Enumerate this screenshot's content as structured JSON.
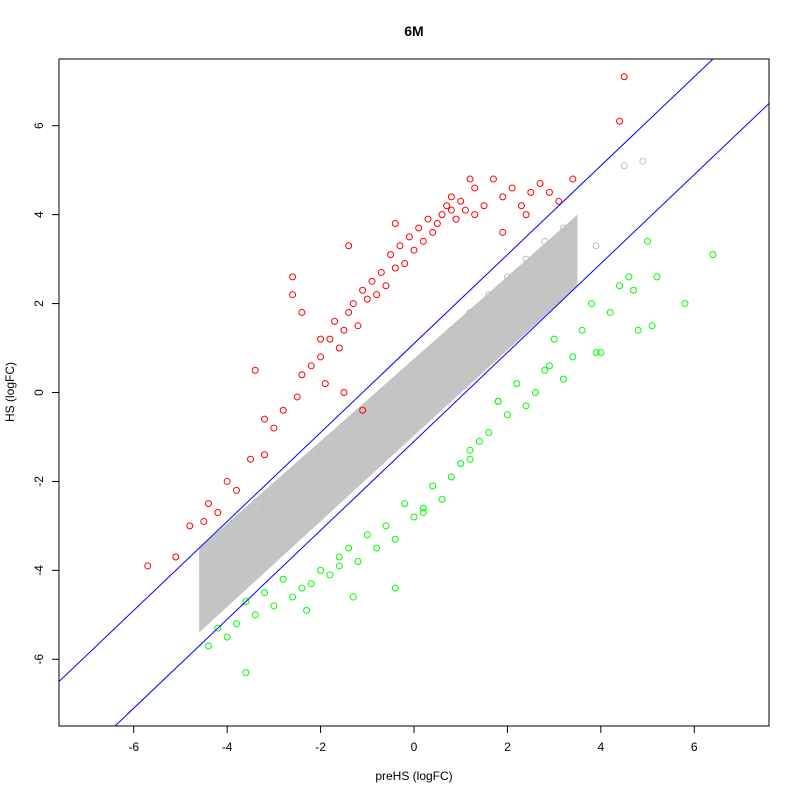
{
  "chart_data": {
    "type": "scatter",
    "title": "6M",
    "xlabel": "preHS (logFC)",
    "ylabel": "HS (logFC)",
    "xlim": [
      -7.6,
      7.6
    ],
    "ylim": [
      -7.5,
      7.5
    ],
    "xticks": [
      -6,
      -4,
      -2,
      0,
      2,
      4,
      6
    ],
    "yticks": [
      -6,
      -4,
      -2,
      0,
      2,
      4,
      6
    ],
    "grid": false,
    "legend": "none",
    "colors": {
      "up": "#ff0000",
      "down": "#00ff00",
      "ns": "#bebebe",
      "line": "#0000ff"
    },
    "lines": [
      {
        "slope": 1,
        "intercept": 1.1
      },
      {
        "slope": 1,
        "intercept": -1.1
      }
    ],
    "series": [
      {
        "group": "ns",
        "color": "#bebebe",
        "x": [
          -4.3,
          -4.1,
          -3.9,
          -3.7,
          -3.5,
          -3.3,
          -3.1,
          -2.9,
          -2.7,
          -2.5,
          -2.3,
          -2.1,
          -1.9,
          -1.7,
          -1.5,
          -1.3,
          -1.1,
          -0.9,
          -0.7,
          -0.5,
          -0.3,
          -0.1,
          0.1,
          0.3,
          0.5,
          0.7,
          0.9,
          1.1,
          1.3,
          1.5,
          1.7,
          1.9,
          2.1,
          2.3,
          2.5,
          2.7,
          2.9,
          3.1,
          3.3,
          -4.0,
          -3.6,
          -3.2,
          -2.8,
          -2.4,
          -2.0,
          -1.6,
          -1.2,
          -0.8,
          -0.4,
          0.0,
          0.4,
          0.8,
          1.2,
          1.6,
          2.0,
          2.4,
          2.8,
          3.2,
          4.5,
          4.9,
          3.9
        ],
        "y": [
          -4.8,
          -4.5,
          -4.3,
          -4.1,
          -3.9,
          -3.7,
          -3.5,
          -3.3,
          -3.1,
          -2.9,
          -2.7,
          -2.5,
          -2.3,
          -2.1,
          -1.9,
          -1.7,
          -1.5,
          -1.3,
          -1.1,
          -0.9,
          -0.7,
          -0.5,
          -0.3,
          -0.1,
          0.1,
          0.3,
          0.5,
          0.7,
          0.9,
          1.1,
          1.3,
          1.5,
          1.7,
          1.9,
          2.1,
          2.3,
          2.5,
          2.7,
          2.9,
          -3.4,
          -3.0,
          -2.6,
          -2.2,
          -1.8,
          -1.4,
          -1.0,
          -0.6,
          -0.2,
          0.2,
          0.6,
          1.0,
          1.4,
          1.8,
          2.2,
          2.6,
          3.0,
          3.4,
          3.7,
          5.1,
          5.2,
          3.3
        ]
      },
      {
        "group": "up",
        "color": "#ff0000",
        "x": [
          -5.7,
          -5.1,
          -4.8,
          -4.5,
          -4.4,
          -4.2,
          -4.0,
          -3.8,
          -3.5,
          -3.4,
          -3.2,
          -3.0,
          -2.8,
          -2.6,
          -2.6,
          -2.5,
          -2.4,
          -2.2,
          -2.0,
          -1.9,
          -1.8,
          -1.7,
          -1.6,
          -1.5,
          -1.4,
          -1.3,
          -1.2,
          -1.1,
          -1.0,
          -0.9,
          -0.8,
          -0.7,
          -0.6,
          -0.5,
          -0.4,
          -0.3,
          -0.2,
          -0.1,
          0.0,
          0.1,
          0.2,
          0.3,
          0.4,
          0.5,
          0.6,
          0.7,
          0.8,
          0.9,
          1.0,
          1.1,
          1.2,
          1.3,
          1.5,
          1.7,
          1.9,
          2.1,
          2.3,
          2.5,
          2.7,
          2.9,
          3.1,
          3.4,
          4.4,
          4.5,
          1.3,
          1.9,
          -0.4,
          -1.4,
          -2.4,
          -2.0,
          -3.2,
          -1.5,
          0.8,
          2.4,
          -1.1
        ],
        "y": [
          -3.9,
          -3.7,
          -3.0,
          -2.9,
          -2.5,
          -2.7,
          -2.0,
          -2.2,
          -1.5,
          0.5,
          -1.4,
          -0.8,
          -0.4,
          2.6,
          2.2,
          -0.1,
          0.4,
          0.6,
          0.8,
          0.2,
          1.2,
          1.6,
          1.0,
          1.4,
          1.8,
          2.0,
          1.5,
          2.3,
          2.1,
          2.5,
          2.2,
          2.7,
          2.4,
          3.1,
          2.8,
          3.3,
          2.9,
          3.5,
          3.2,
          3.7,
          3.4,
          3.9,
          3.6,
          3.8,
          4.0,
          4.2,
          4.4,
          3.9,
          4.3,
          4.1,
          4.8,
          4.6,
          4.2,
          4.8,
          4.4,
          4.6,
          4.2,
          4.5,
          4.7,
          4.5,
          4.3,
          4.8,
          6.1,
          7.1,
          4.0,
          3.6,
          3.8,
          3.3,
          1.8,
          1.2,
          -0.6,
          0.0,
          4.1,
          4.0,
          -0.4
        ]
      },
      {
        "group": "down",
        "color": "#00ff00",
        "x": [
          6.4,
          5.8,
          5.2,
          5.0,
          4.8,
          4.6,
          4.4,
          4.2,
          4.0,
          3.8,
          3.6,
          3.4,
          3.2,
          3.0,
          2.8,
          2.6,
          2.4,
          2.2,
          2.0,
          1.8,
          1.6,
          1.4,
          1.2,
          1.0,
          0.8,
          0.6,
          0.4,
          0.2,
          0.0,
          -0.2,
          -0.4,
          -0.6,
          -0.8,
          -1.0,
          -1.2,
          -1.4,
          -1.6,
          -1.8,
          -2.0,
          -2.2,
          -2.4,
          -2.6,
          -2.8,
          -3.0,
          -3.2,
          -3.4,
          -3.6,
          -3.8,
          -4.0,
          -4.2,
          -4.4,
          -3.6,
          -2.3,
          -1.3,
          -0.4,
          1.8,
          2.9,
          3.9,
          1.2,
          0.2,
          -1.6,
          4.7,
          5.1
        ],
        "y": [
          3.1,
          2.0,
          2.6,
          3.4,
          1.4,
          2.6,
          2.4,
          1.8,
          0.9,
          2.0,
          1.4,
          0.8,
          0.3,
          1.2,
          0.5,
          0.0,
          -0.3,
          0.2,
          -0.5,
          -0.2,
          -0.9,
          -1.1,
          -1.5,
          -1.6,
          -1.9,
          -2.4,
          -2.1,
          -2.6,
          -2.8,
          -2.5,
          -3.3,
          -3.0,
          -3.5,
          -3.2,
          -3.8,
          -3.5,
          -3.7,
          -4.1,
          -4.0,
          -4.3,
          -4.4,
          -4.6,
          -4.2,
          -4.8,
          -4.5,
          -5.0,
          -4.7,
          -5.2,
          -5.5,
          -5.3,
          -5.7,
          -6.3,
          -4.9,
          -4.6,
          -4.4,
          -0.2,
          0.6,
          0.9,
          -1.3,
          -2.7,
          -3.9,
          2.3,
          1.5
        ]
      }
    ]
  }
}
